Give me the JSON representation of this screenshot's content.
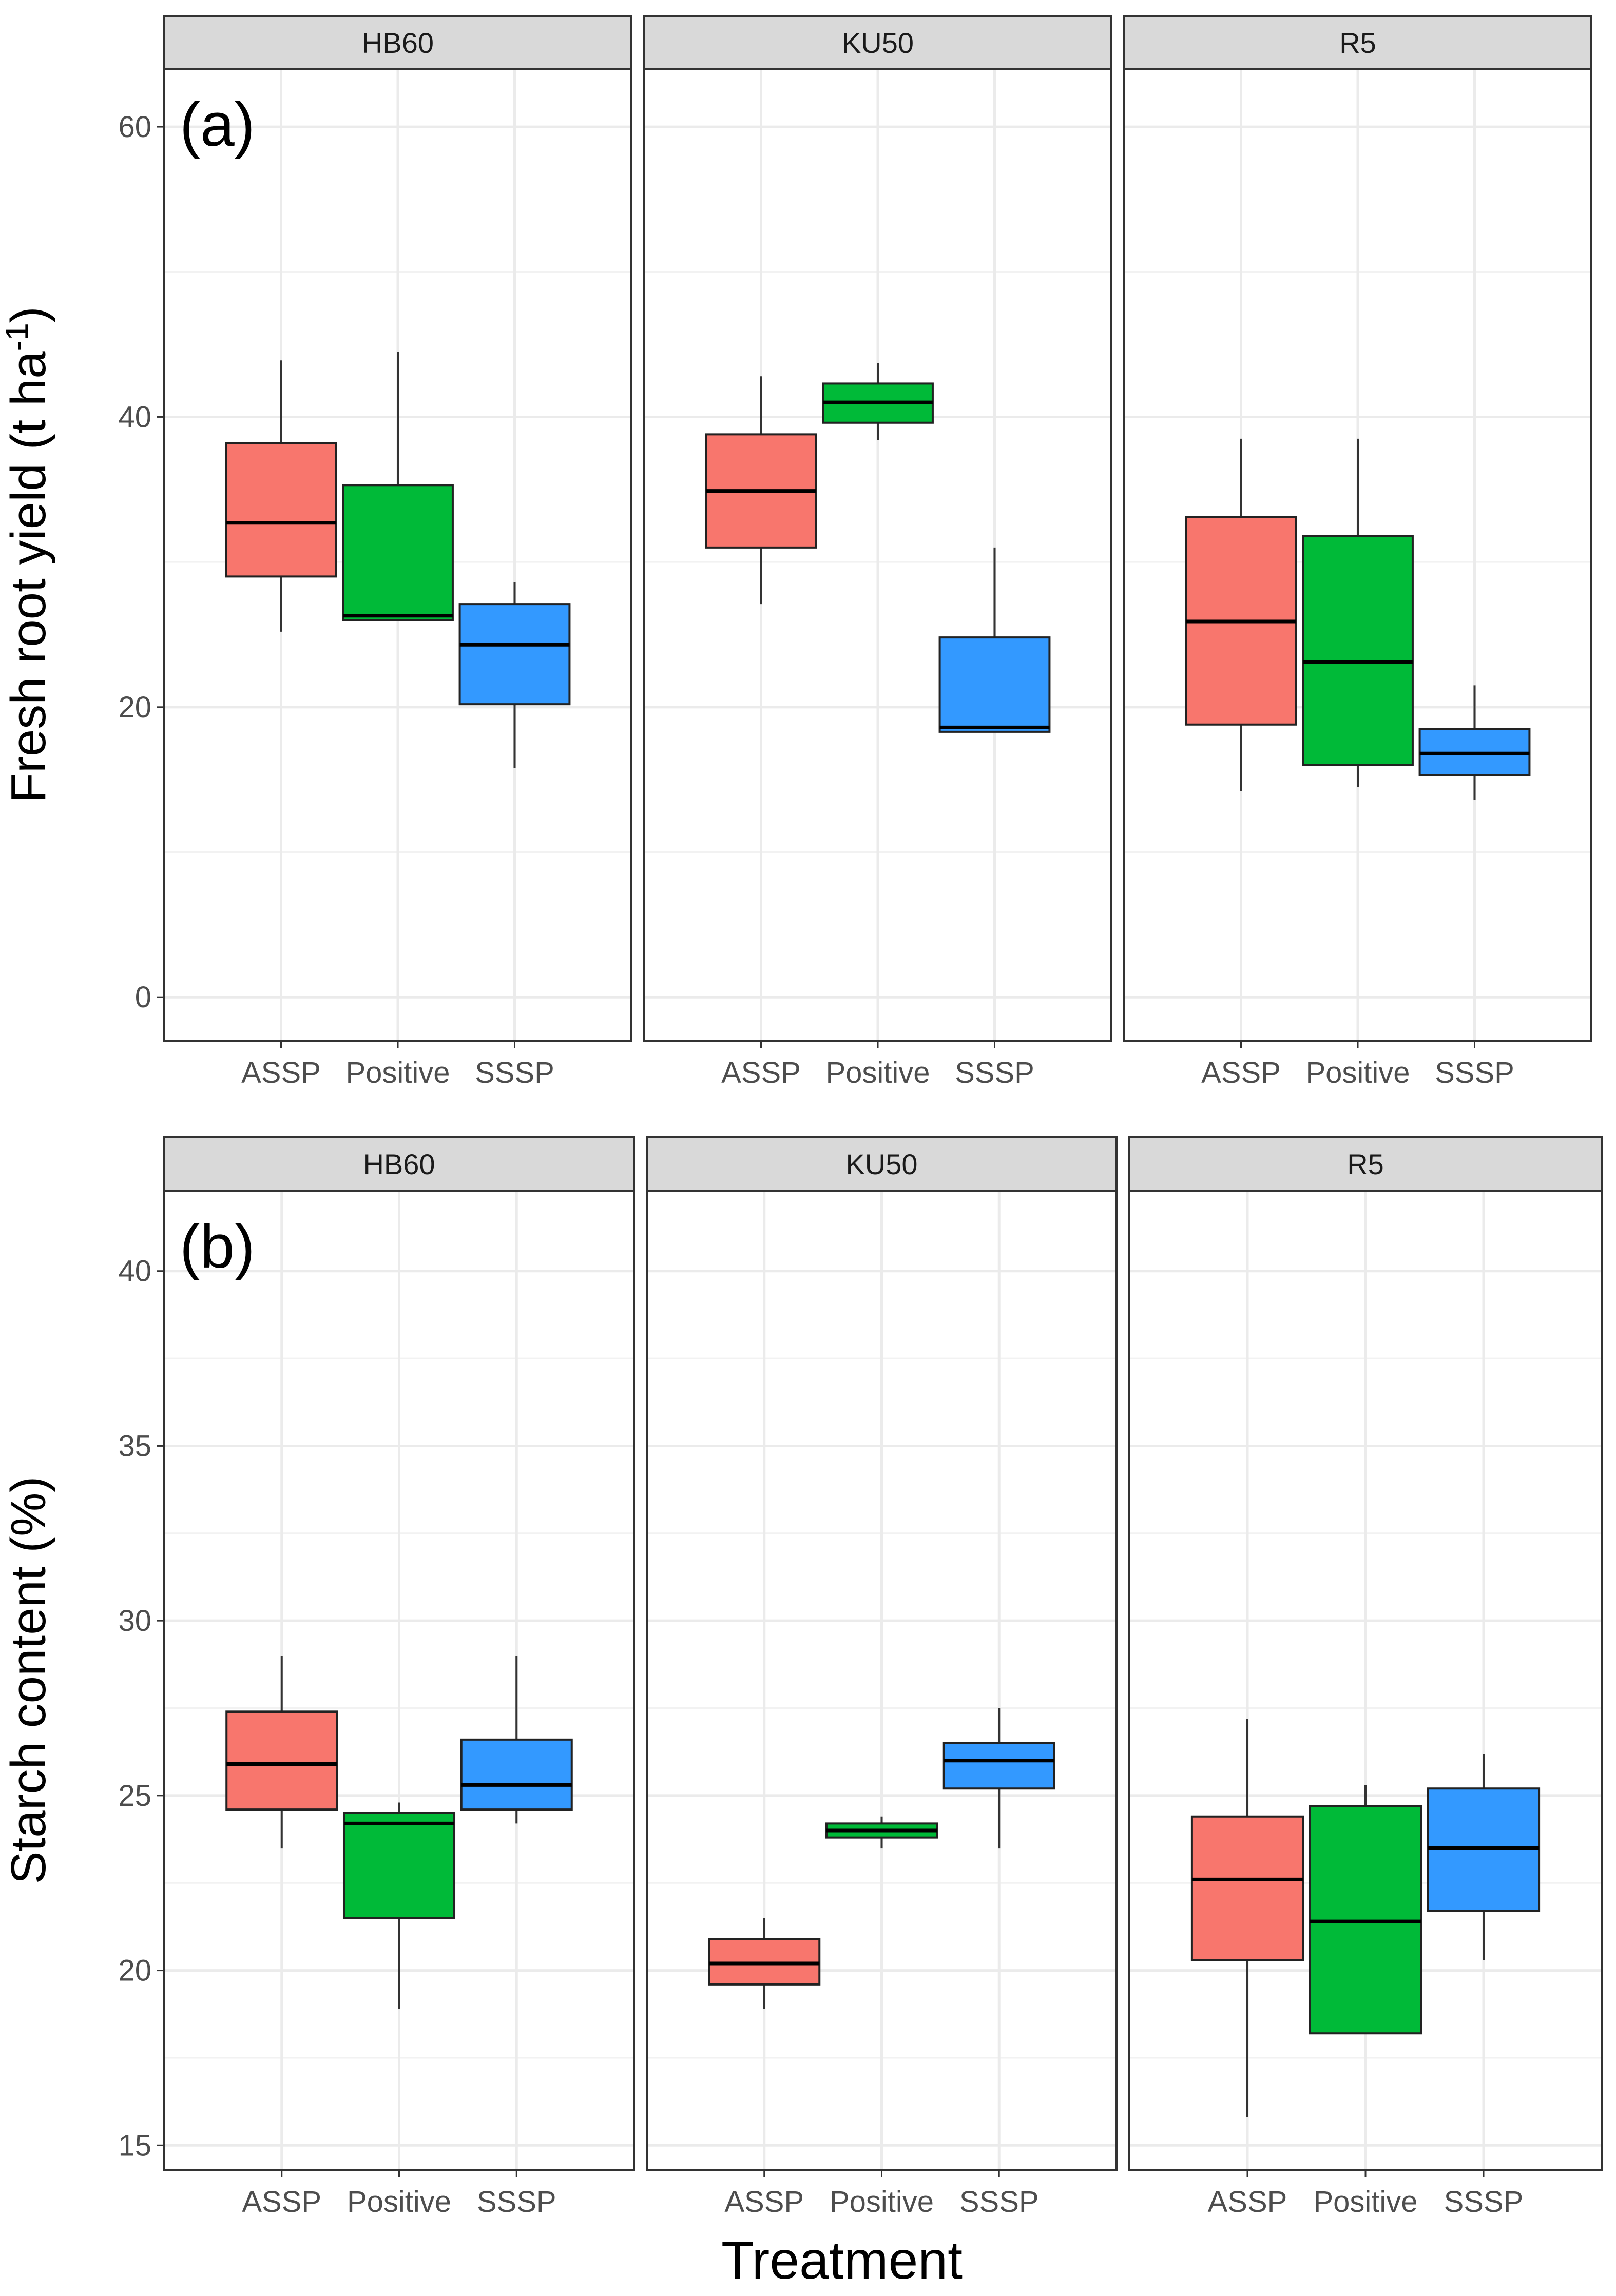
{
  "chart_data": [
    {
      "type": "boxplot",
      "panel_label": "(a)",
      "ylabel_main": "Fresh root yield (t ha",
      "ylabel_sup": "-1",
      "ylabel_end": ")",
      "ylim": [
        -3,
        64
      ],
      "yticks": [
        0,
        20,
        40,
        60
      ],
      "categories": [
        "ASSP",
        "Positive",
        "SSSP"
      ],
      "colors": [
        "#F8766D",
        "#00BA38",
        "#3399FF"
      ],
      "facets": [
        {
          "name": "HB60",
          "boxes": [
            {
              "category": "ASSP",
              "min": 25.2,
              "q1": 29.0,
              "median": 32.7,
              "q3": 38.2,
              "max": 43.9
            },
            {
              "category": "Positive",
              "min": 26.0,
              "q1": 26.0,
              "median": 26.3,
              "q3": 35.3,
              "max": 44.5
            },
            {
              "category": "SSSP",
              "min": 15.8,
              "q1": 20.2,
              "median": 24.3,
              "q3": 27.1,
              "max": 28.6
            }
          ]
        },
        {
          "name": "KU50",
          "boxes": [
            {
              "category": "ASSP",
              "min": 27.1,
              "q1": 31.0,
              "median": 34.9,
              "q3": 38.8,
              "max": 42.8
            },
            {
              "category": "Positive",
              "min": 38.4,
              "q1": 39.6,
              "median": 41.0,
              "q3": 42.3,
              "max": 43.7
            },
            {
              "category": "SSSP",
              "min": 18.3,
              "q1": 18.3,
              "median": 18.6,
              "q3": 24.8,
              "max": 31.0
            }
          ]
        },
        {
          "name": "R5",
          "boxes": [
            {
              "category": "ASSP",
              "min": 14.2,
              "q1": 18.8,
              "median": 25.9,
              "q3": 33.1,
              "max": 38.5
            },
            {
              "category": "Positive",
              "min": 14.5,
              "q1": 16.0,
              "median": 23.1,
              "q3": 31.8,
              "max": 38.5
            },
            {
              "category": "SSSP",
              "min": 13.6,
              "q1": 15.3,
              "median": 16.8,
              "q3": 18.5,
              "max": 21.5
            }
          ]
        }
      ]
    },
    {
      "type": "boxplot",
      "panel_label": "(b)",
      "ylabel_main": "Starch content (%)",
      "ylabel_sup": "",
      "ylabel_end": "",
      "ylim": [
        14.3,
        42.3
      ],
      "yticks": [
        15,
        20,
        25,
        30,
        35,
        40
      ],
      "categories": [
        "ASSP",
        "Positive",
        "SSSP"
      ],
      "colors": [
        "#F8766D",
        "#00BA38",
        "#3399FF"
      ],
      "facets": [
        {
          "name": "HB60",
          "boxes": [
            {
              "category": "ASSP",
              "min": 23.5,
              "q1": 24.6,
              "median": 25.9,
              "q3": 27.4,
              "max": 29.0
            },
            {
              "category": "Positive",
              "min": 18.9,
              "q1": 21.5,
              "median": 24.2,
              "q3": 24.5,
              "max": 24.8
            },
            {
              "category": "SSSP",
              "min": 24.2,
              "q1": 24.6,
              "median": 25.3,
              "q3": 26.6,
              "max": 29.0
            }
          ]
        },
        {
          "name": "KU50",
          "boxes": [
            {
              "category": "ASSP",
              "min": 18.9,
              "q1": 19.6,
              "median": 20.2,
              "q3": 20.9,
              "max": 21.5
            },
            {
              "category": "Positive",
              "min": 23.5,
              "q1": 23.8,
              "median": 24.0,
              "q3": 24.2,
              "max": 24.4
            },
            {
              "category": "SSSP",
              "min": 23.5,
              "q1": 25.2,
              "median": 26.0,
              "q3": 26.5,
              "max": 27.5
            }
          ]
        },
        {
          "name": "R5",
          "boxes": [
            {
              "category": "ASSP",
              "min": 15.8,
              "q1": 20.3,
              "median": 22.6,
              "q3": 24.4,
              "max": 27.2
            },
            {
              "category": "Positive",
              "min": 18.2,
              "q1": 18.2,
              "median": 21.4,
              "q3": 24.7,
              "max": 25.3
            },
            {
              "category": "SSSP",
              "min": 20.3,
              "q1": 21.7,
              "median": 23.5,
              "q3": 25.2,
              "max": 26.2
            }
          ]
        }
      ]
    }
  ],
  "xlabel": "Treatment"
}
